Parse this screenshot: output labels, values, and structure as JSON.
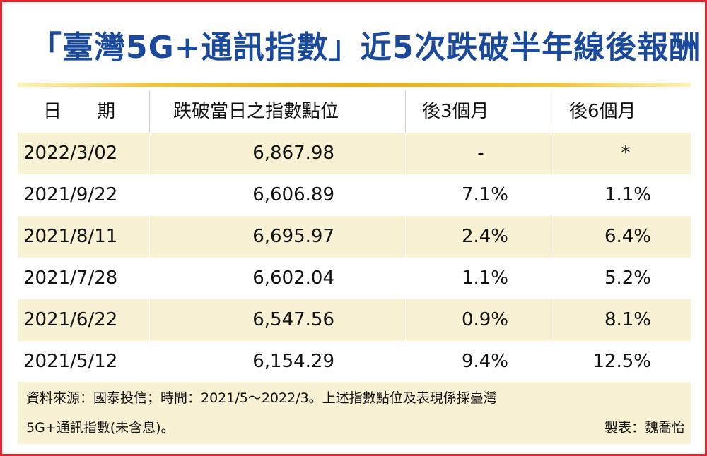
{
  "title": "「臺灣5G+通訊指數」近5次跌破半年線後報酬",
  "table": {
    "headers": [
      "日　期",
      "跌破當日之指數點位",
      "後3個月",
      "後6個月"
    ],
    "rows": [
      {
        "date": "2022/3/02",
        "index": "6,867.98",
        "m3": "-",
        "m6": "*"
      },
      {
        "date": "2021/9/22",
        "index": "6,606.89",
        "m3": "7.1%",
        "m6": "1.1%"
      },
      {
        "date": "2021/8/11",
        "index": "6,695.97",
        "m3": "2.4%",
        "m6": "6.4%"
      },
      {
        "date": "2021/7/28",
        "index": "6,602.04",
        "m3": "1.1%",
        "m6": "5.2%"
      },
      {
        "date": "2021/6/22",
        "index": "6,547.56",
        "m3": "0.9%",
        "m6": "8.1%"
      },
      {
        "date": "2021/5/12",
        "index": "6,154.29",
        "m3": "9.4%",
        "m6": "12.5%"
      }
    ]
  },
  "footer": {
    "note_line1": "資料來源：國泰投信；時間：2021/5～2022/3。上述指數點位及表現係採臺灣",
    "note_line2": "5G+通訊指數(未含息)。",
    "credit": "製表：魏喬怡"
  },
  "colors": {
    "title": "#1b4a9c",
    "frame": "#e0232c",
    "shade": "#f8f1d4",
    "accent_line": "#e8ae15"
  }
}
